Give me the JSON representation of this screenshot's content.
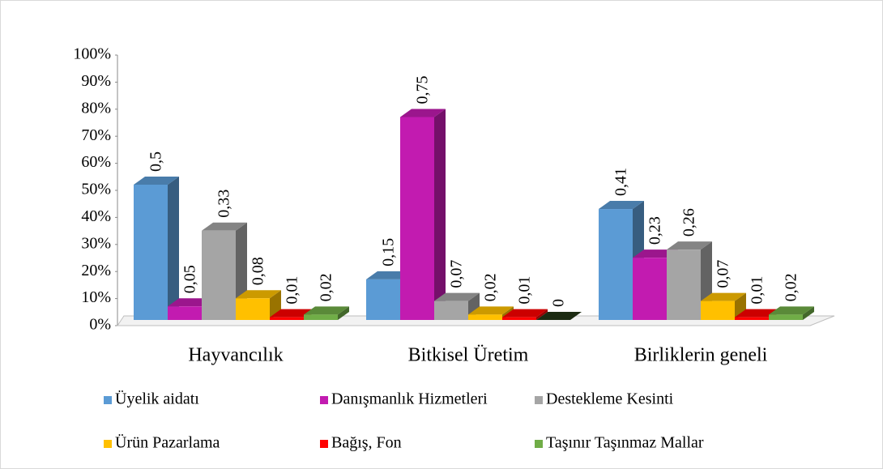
{
  "chart_data": {
    "type": "bar3d",
    "categories": [
      "Hayvancılık",
      "Bitkisel Üretim",
      "Birliklerin geneli"
    ],
    "series": [
      {
        "name": "Üyelik aidatı",
        "color": "#5b9bd5",
        "values": [
          50,
          15,
          41
        ],
        "value_labels": [
          "0,5",
          "0,15",
          "0,41"
        ]
      },
      {
        "name": "Danışmanlık Hizmetleri",
        "color": "#c21bb0",
        "values": [
          5,
          75,
          23
        ],
        "value_labels": [
          "0,05",
          "0,75",
          "0,23"
        ]
      },
      {
        "name": "Destekleme Kesinti",
        "color": "#a5a5a5",
        "values": [
          33,
          7,
          26
        ],
        "value_labels": [
          "0,33",
          "0,07",
          "0,26"
        ]
      },
      {
        "name": "Ürün Pazarlama",
        "color": "#ffc000",
        "values": [
          8,
          2,
          7
        ],
        "value_labels": [
          "0,08",
          "0,02",
          "0,07"
        ]
      },
      {
        "name": "Bağış, Fon",
        "color": "#ff0000",
        "values": [
          1,
          1,
          1
        ],
        "value_labels": [
          "0,01",
          "0,01",
          "0,01"
        ]
      },
      {
        "name": "Taşınır Taşınmaz Mallar",
        "color": "#70ad47",
        "values": [
          2,
          0,
          2
        ],
        "value_labels": [
          "0,02",
          "0",
          "0,02"
        ]
      }
    ],
    "ylim": [
      0,
      100
    ],
    "yticks": [
      {
        "value": 0,
        "label": "0%"
      },
      {
        "value": 10,
        "label": "10%"
      },
      {
        "value": 20,
        "label": "20%"
      },
      {
        "value": 30,
        "label": "30%"
      },
      {
        "value": 40,
        "label": "40%"
      },
      {
        "value": 50,
        "label": "50%"
      },
      {
        "value": 60,
        "label": "60%"
      },
      {
        "value": 70,
        "label": "70%"
      },
      {
        "value": 80,
        "label": "80%"
      },
      {
        "value": 90,
        "label": "90%"
      },
      {
        "value": 100,
        "label": "100%"
      }
    ],
    "legend": "bottom"
  }
}
